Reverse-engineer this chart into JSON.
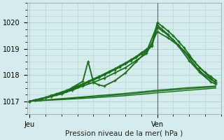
{
  "bg_color": "#d4ecec",
  "grid_color": "#aed4d4",
  "xlabel": "Pression niveau de la mer( hPa )",
  "x_tick_labels": [
    "Jeu",
    "Ven"
  ],
  "x_tick_positions": [
    0,
    24
  ],
  "ylim": [
    1016.55,
    1020.55
  ],
  "yticks": [
    1017,
    1018,
    1019,
    1020
  ],
  "xlim": [
    -0.5,
    36
  ],
  "vline_x": 24,
  "series": [
    {
      "x": [
        0,
        1,
        2,
        3,
        4,
        5,
        6,
        7,
        8,
        9,
        10,
        11,
        12,
        13,
        14,
        15,
        16,
        17,
        18,
        19,
        20,
        21,
        22,
        23,
        24,
        25,
        26,
        27,
        28,
        29,
        30,
        31,
        32,
        33,
        34,
        35
      ],
      "y": [
        1017.0,
        1017.05,
        1017.1,
        1017.15,
        1017.22,
        1017.28,
        1017.35,
        1017.42,
        1017.5,
        1017.58,
        1017.67,
        1017.76,
        1017.85,
        1017.94,
        1018.04,
        1018.14,
        1018.24,
        1018.35,
        1018.46,
        1018.58,
        1018.7,
        1018.85,
        1018.98,
        1019.15,
        1020.0,
        1019.85,
        1019.68,
        1019.5,
        1019.28,
        1019.05,
        1018.78,
        1018.5,
        1018.28,
        1018.1,
        1017.95,
        1017.8
      ],
      "color": "#1a6e1a",
      "lw": 1.3,
      "marker": "+"
    },
    {
      "x": [
        0,
        1,
        2,
        3,
        4,
        5,
        6,
        7,
        8,
        9,
        10,
        11,
        12,
        13,
        14,
        15,
        16,
        17,
        18,
        19,
        20,
        21,
        22,
        23,
        24,
        25,
        26,
        27,
        28,
        29,
        30,
        31,
        32,
        33,
        34,
        35
      ],
      "y": [
        1017.0,
        1017.04,
        1017.08,
        1017.13,
        1017.19,
        1017.25,
        1017.31,
        1017.38,
        1017.46,
        1017.54,
        1017.63,
        1017.72,
        1017.81,
        1017.9,
        1018.0,
        1018.1,
        1018.2,
        1018.31,
        1018.42,
        1018.54,
        1018.66,
        1018.8,
        1018.93,
        1019.1,
        1019.82,
        1019.68,
        1019.52,
        1019.35,
        1019.14,
        1018.92,
        1018.66,
        1018.38,
        1018.16,
        1017.98,
        1017.84,
        1017.72
      ],
      "color": "#1a6e1a",
      "lw": 1.3,
      "marker": "+"
    },
    {
      "x": [
        0,
        2,
        4,
        6,
        8,
        10,
        12,
        14,
        16,
        18,
        20,
        22,
        24,
        26,
        28,
        30,
        32,
        34,
        35
      ],
      "y": [
        1017.0,
        1017.08,
        1017.18,
        1017.28,
        1017.42,
        1017.58,
        1017.72,
        1017.88,
        1018.08,
        1018.28,
        1018.55,
        1018.82,
        1019.65,
        1019.42,
        1019.12,
        1018.72,
        1018.28,
        1017.88,
        1017.7
      ],
      "color": "#1a6e1a",
      "lw": 1.3,
      "marker": "+"
    },
    {
      "x": [
        0,
        2,
        4,
        6,
        8,
        10,
        11,
        12,
        13,
        14,
        16,
        18,
        20,
        22,
        24,
        26,
        28,
        30,
        32,
        34,
        35
      ],
      "y": [
        1017.0,
        1017.08,
        1017.18,
        1017.28,
        1017.52,
        1017.76,
        1018.52,
        1017.72,
        1017.62,
        1017.58,
        1017.78,
        1018.08,
        1018.5,
        1018.9,
        1019.9,
        1019.55,
        1019.1,
        1018.55,
        1018.1,
        1017.75,
        1017.65
      ],
      "color": "#226e22",
      "lw": 1.4,
      "marker": "+"
    },
    {
      "x": [
        0,
        6,
        12,
        18,
        24,
        30,
        35
      ],
      "y": [
        1017.0,
        1017.1,
        1017.2,
        1017.3,
        1017.42,
        1017.52,
        1017.58
      ],
      "color": "#1a6e1a",
      "lw": 1.0,
      "marker": null
    },
    {
      "x": [
        0,
        6,
        12,
        18,
        24,
        30,
        35
      ],
      "y": [
        1017.0,
        1017.08,
        1017.17,
        1017.26,
        1017.38,
        1017.48,
        1017.55
      ],
      "color": "#1a6e1a",
      "lw": 1.0,
      "marker": null
    },
    {
      "x": [
        0,
        6,
        12,
        18,
        24,
        30,
        35
      ],
      "y": [
        1017.0,
        1017.06,
        1017.13,
        1017.21,
        1017.32,
        1017.42,
        1017.5
      ],
      "color": "#1a6e1a",
      "lw": 1.0,
      "marker": null
    }
  ]
}
